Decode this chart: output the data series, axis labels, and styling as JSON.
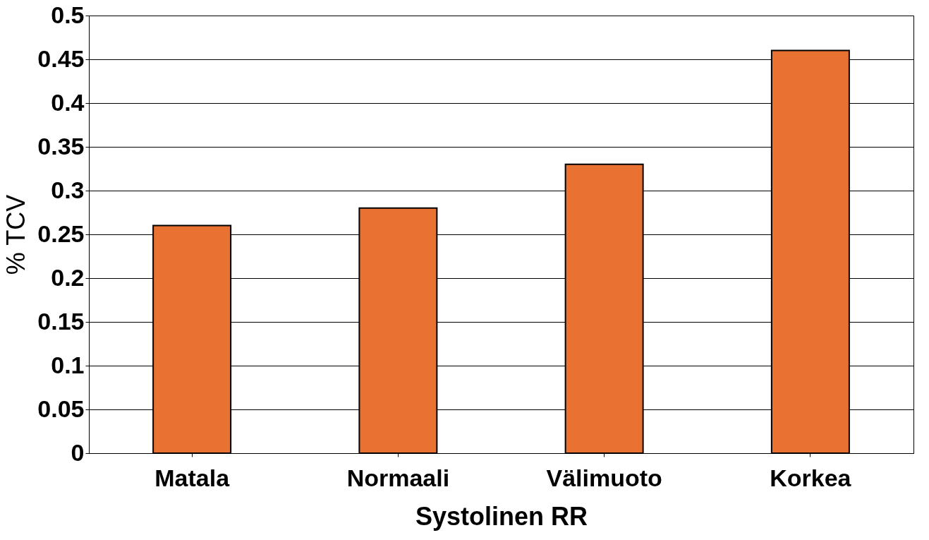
{
  "chart_data": {
    "type": "bar",
    "xlabel": "Systolinen RR",
    "ylabel": "% TCV",
    "categories": [
      "Matala",
      "Normaali",
      "Välimuoto",
      "Korkea"
    ],
    "values": [
      0.26,
      0.28,
      0.33,
      0.46
    ],
    "color": "#e97132",
    "ylim": [
      0,
      0.5
    ],
    "yticks": [
      0,
      0.05,
      0.1,
      0.15,
      0.2,
      0.25,
      0.3,
      0.35,
      0.4,
      0.45,
      0.5
    ],
    "grid": "y"
  }
}
